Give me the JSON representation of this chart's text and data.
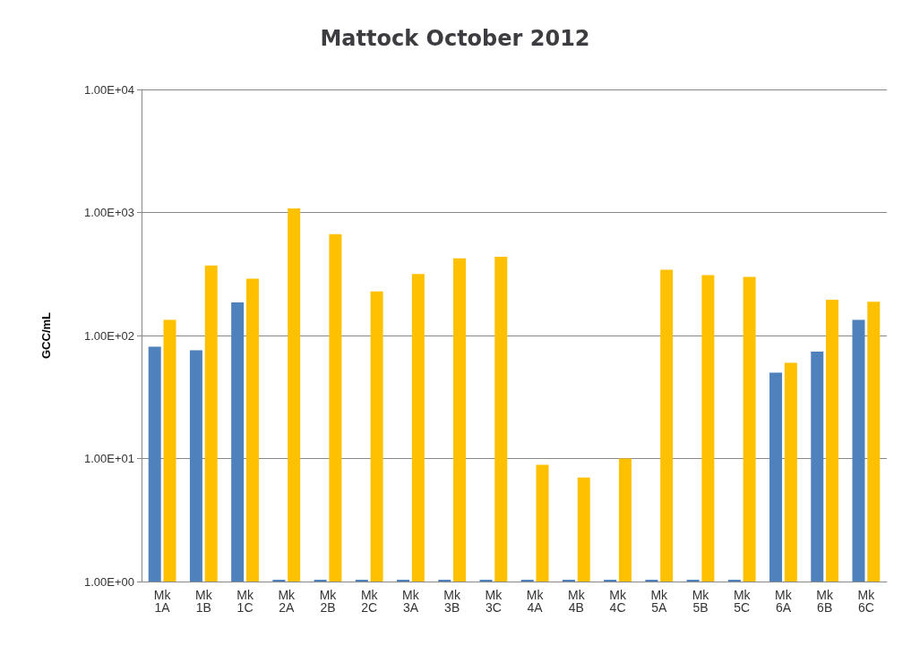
{
  "chart_data": {
    "type": "bar",
    "title": "Mattock October 2012",
    "ylabel": "GCC/mL",
    "categories": [
      "Mk 1A",
      "Mk 1B",
      "Mk 1C",
      "Mk 2A",
      "Mk 2B",
      "Mk 2C",
      "Mk 3A",
      "Mk 3B",
      "Mk 3C",
      "Mk 4A",
      "Mk 4B",
      "Mk 4C",
      "Mk 5A",
      "Mk 5B",
      "Mk 5C",
      "Mk 6A",
      "Mk 6B",
      "Mk 6C"
    ],
    "series": [
      {
        "color": "#4f81bd",
        "values": [
          81,
          76,
          186,
          1,
          1,
          1,
          1,
          1,
          1,
          1,
          1,
          1,
          1,
          1,
          1,
          50,
          74,
          134
        ]
      },
      {
        "color": "#ffc000",
        "values": [
          134,
          371,
          290,
          1080,
          666,
          228,
          316,
          424,
          437,
          8.9,
          7,
          10,
          343,
          310,
          300,
          60,
          195,
          188
        ]
      }
    ],
    "log": "y",
    "ylim": [
      1,
      10000
    ],
    "yticks": [
      {
        "value": 1,
        "label": "1.00E+00"
      },
      {
        "value": 10,
        "label": "1.00E+01"
      },
      {
        "value": 100,
        "label": "1.00E+02"
      },
      {
        "value": 1000,
        "label": "1.00E+03"
      },
      {
        "value": 10000,
        "label": "1.00E+04"
      }
    ],
    "grid": "y"
  }
}
